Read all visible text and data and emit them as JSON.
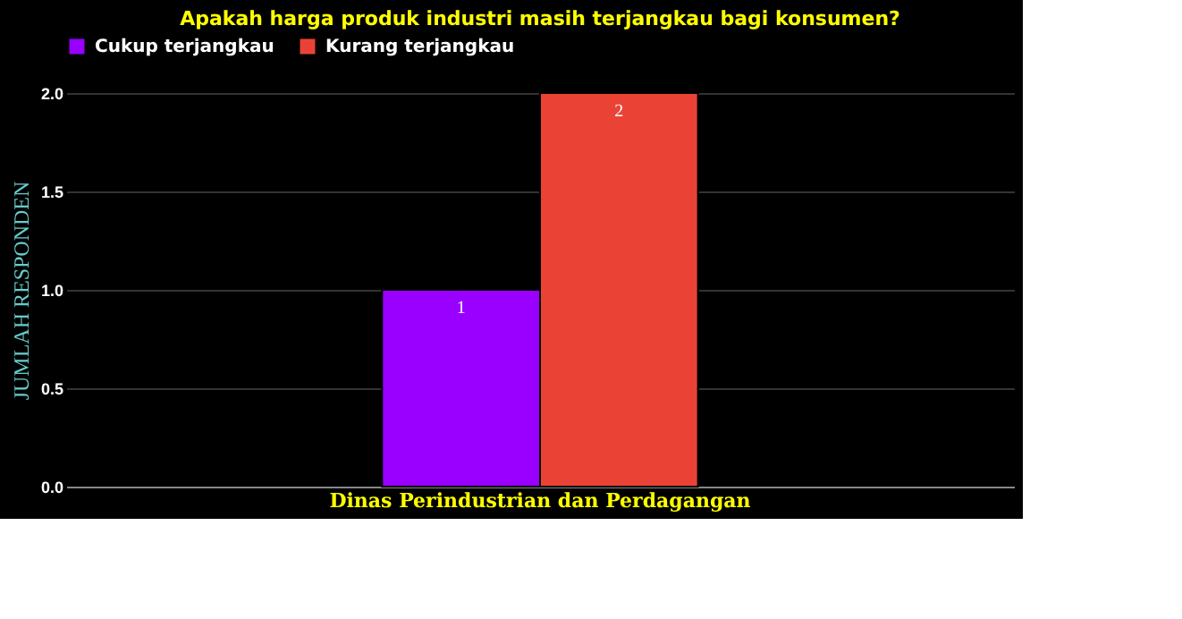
{
  "chart_data": {
    "type": "bar",
    "title": "Apakah harga produk industri masih terjangkau bagi konsumen?",
    "ylabel": "JUMLAH RESPONDEN",
    "categories": [
      "Dinas Perindustrian dan Perdagangan"
    ],
    "series": [
      {
        "name": "Cukup terjangkau",
        "color": "#9900ff",
        "values": [
          1
        ]
      },
      {
        "name": "Kurang terjangkau",
        "color": "#ea4335",
        "values": [
          2
        ]
      }
    ],
    "ylim": [
      0,
      2
    ],
    "yticks": [
      {
        "value": 0,
        "label": "0.0"
      },
      {
        "value": 0.5,
        "label": "0.5"
      },
      {
        "value": 1,
        "label": "1.0"
      },
      {
        "value": 1.5,
        "label": "1.5"
      },
      {
        "value": 2,
        "label": "2.0"
      }
    ],
    "grid": "y",
    "legend": "top",
    "data_labels": true
  }
}
